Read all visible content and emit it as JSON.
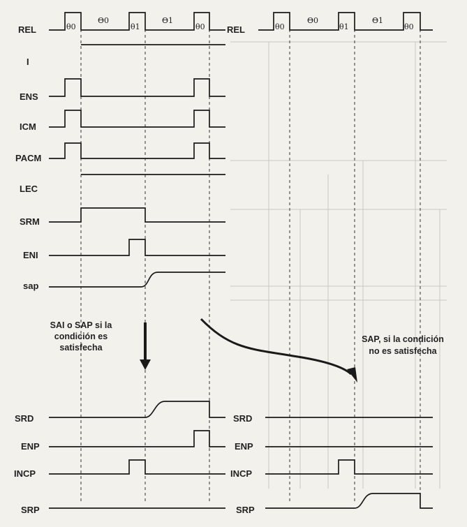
{
  "left_signals": [
    "REL",
    "I",
    "ENS",
    "ICM",
    "PACM",
    "LEC",
    "SRM",
    "ENI",
    "sap",
    "SRD",
    "ENP",
    "INCP",
    "SRP"
  ],
  "right_signals": [
    "REL",
    "SRD",
    "ENP",
    "INCP",
    "SRP"
  ],
  "left_phases": [
    "θ0",
    "Θ0",
    "θ1",
    "Θ1",
    "θ0"
  ],
  "right_phases": [
    "θ0",
    "Θ0",
    "θ1",
    "Θ1",
    "θ0"
  ],
  "note_left": [
    "SAI o SAP si la",
    "condición es",
    "satisfecha"
  ],
  "note_right": [
    "SAP, si la condición",
    "no es satisfecha"
  ],
  "colors": {
    "ink": "#1a1a1a",
    "paper": "#f3f1ec"
  }
}
